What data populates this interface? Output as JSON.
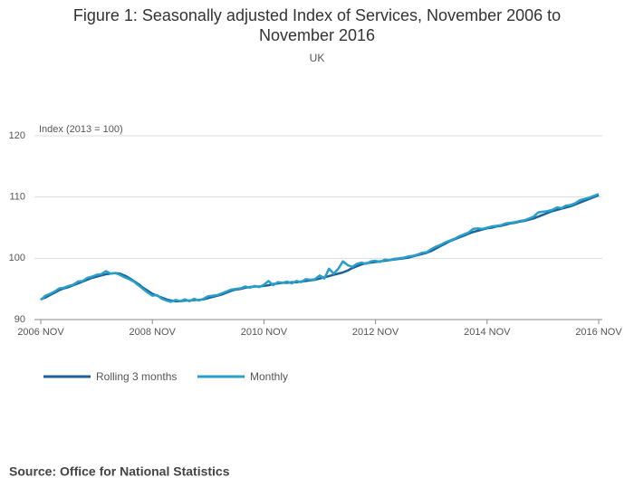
{
  "chart_data": {
    "type": "line",
    "title": "Figure 1: Seasonally adjusted Index of Services, November 2006 to November 2016",
    "subtitle": "UK",
    "y_label": "Index (2013 = 100)",
    "source": "Source: Office for National Statistics",
    "x": [
      "2006-11",
      "2006-12",
      "2007-01",
      "2007-02",
      "2007-03",
      "2007-04",
      "2007-05",
      "2007-06",
      "2007-07",
      "2007-08",
      "2007-09",
      "2007-10",
      "2007-11",
      "2007-12",
      "2008-01",
      "2008-02",
      "2008-03",
      "2008-04",
      "2008-05",
      "2008-06",
      "2008-07",
      "2008-08",
      "2008-09",
      "2008-10",
      "2008-11",
      "2008-12",
      "2009-01",
      "2009-02",
      "2009-03",
      "2009-04",
      "2009-05",
      "2009-06",
      "2009-07",
      "2009-08",
      "2009-09",
      "2009-10",
      "2009-11",
      "2009-12",
      "2010-01",
      "2010-02",
      "2010-03",
      "2010-04",
      "2010-05",
      "2010-06",
      "2010-07",
      "2010-08",
      "2010-09",
      "2010-10",
      "2010-11",
      "2010-12",
      "2011-01",
      "2011-02",
      "2011-03",
      "2011-04",
      "2011-05",
      "2011-06",
      "2011-07",
      "2011-08",
      "2011-09",
      "2011-10",
      "2011-11",
      "2011-12",
      "2012-01",
      "2012-02",
      "2012-03",
      "2012-04",
      "2012-05",
      "2012-06",
      "2012-07",
      "2012-08",
      "2012-09",
      "2012-10",
      "2012-11",
      "2012-12",
      "2013-01",
      "2013-02",
      "2013-03",
      "2013-04",
      "2013-05",
      "2013-06",
      "2013-07",
      "2013-08",
      "2013-09",
      "2013-10",
      "2013-11",
      "2013-12",
      "2014-01",
      "2014-02",
      "2014-03",
      "2014-04",
      "2014-05",
      "2014-06",
      "2014-07",
      "2014-08",
      "2014-09",
      "2014-10",
      "2014-11",
      "2014-12",
      "2015-01",
      "2015-02",
      "2015-03",
      "2015-04",
      "2015-05",
      "2015-06",
      "2015-07",
      "2015-08",
      "2015-09",
      "2015-10",
      "2015-11",
      "2015-12",
      "2016-01",
      "2016-02",
      "2016-03",
      "2016-04",
      "2016-05",
      "2016-06",
      "2016-07",
      "2016-08",
      "2016-09",
      "2016-10",
      "2016-11"
    ],
    "series": [
      {
        "name": "Rolling 3 months",
        "color": "#206095",
        "values": [
          93.3,
          93.6,
          94.0,
          94.4,
          94.8,
          95.1,
          95.3,
          95.6,
          95.9,
          96.2,
          96.5,
          96.8,
          97.0,
          97.2,
          97.4,
          97.5,
          97.6,
          97.5,
          97.2,
          96.8,
          96.3,
          95.8,
          95.2,
          94.7,
          94.2,
          93.9,
          93.6,
          93.3,
          93.1,
          93.0,
          93.0,
          93.1,
          93.1,
          93.2,
          93.2,
          93.3,
          93.5,
          93.7,
          93.9,
          94.1,
          94.4,
          94.7,
          94.9,
          95.0,
          95.2,
          95.3,
          95.4,
          95.4,
          95.5,
          95.6,
          95.8,
          95.9,
          96.0,
          96.0,
          96.1,
          96.1,
          96.2,
          96.3,
          96.4,
          96.5,
          96.7,
          96.9,
          97.1,
          97.3,
          97.5,
          97.7,
          98.0,
          98.4,
          98.7,
          99.0,
          99.2,
          99.3,
          99.4,
          99.5,
          99.6,
          99.7,
          99.8,
          99.9,
          100.0,
          100.1,
          100.3,
          100.5,
          100.7,
          100.9,
          101.2,
          101.6,
          102.0,
          102.4,
          102.8,
          103.1,
          103.4,
          103.7,
          104.0,
          104.3,
          104.5,
          104.7,
          104.9,
          105.0,
          105.2,
          105.3,
          105.5,
          105.7,
          105.8,
          106.0,
          106.1,
          106.3,
          106.5,
          106.8,
          107.1,
          107.4,
          107.7,
          107.9,
          108.1,
          108.3,
          108.5,
          108.8,
          109.1,
          109.4,
          109.7,
          110.0,
          110.3
        ]
      },
      {
        "name": "Monthly",
        "color": "#27a0cc",
        "values": [
          93.2,
          93.9,
          94.2,
          94.6,
          95.1,
          95.2,
          95.5,
          95.7,
          96.2,
          96.3,
          96.8,
          97.0,
          97.3,
          97.4,
          97.9,
          97.5,
          97.6,
          97.3,
          96.9,
          96.6,
          96.2,
          95.6,
          95.0,
          94.4,
          93.9,
          94.0,
          93.4,
          93.1,
          92.9,
          93.2,
          93.0,
          93.3,
          93.0,
          93.4,
          93.1,
          93.4,
          93.8,
          93.9,
          94.0,
          94.3,
          94.6,
          94.9,
          95.0,
          95.1,
          95.4,
          95.2,
          95.5,
          95.3,
          95.7,
          96.3,
          95.6,
          96.1,
          96.0,
          96.2,
          95.9,
          96.3,
          96.1,
          96.6,
          96.5,
          96.6,
          97.2,
          96.7,
          98.3,
          97.5,
          98.3,
          99.5,
          98.9,
          98.6,
          99.1,
          99.3,
          99.1,
          99.5,
          99.6,
          99.4,
          99.8,
          99.7,
          99.9,
          100.0,
          100.1,
          100.3,
          100.4,
          100.6,
          100.9,
          101.0,
          101.5,
          101.9,
          102.2,
          102.6,
          102.9,
          103.2,
          103.6,
          103.9,
          104.2,
          104.8,
          104.9,
          104.8,
          105.0,
          105.2,
          105.3,
          105.4,
          105.7,
          105.8,
          105.9,
          106.1,
          106.2,
          106.5,
          106.8,
          107.5,
          107.6,
          107.7,
          107.9,
          108.3,
          108.2,
          108.6,
          108.7,
          109.0,
          109.5,
          109.7,
          109.9,
          110.2,
          110.5
        ]
      }
    ],
    "xlim": [
      "2006-11",
      "2016-11"
    ],
    "xticks": [
      {
        "value": "2006-11",
        "label": "2006 NOV"
      },
      {
        "value": "2008-11",
        "label": "2008 NOV"
      },
      {
        "value": "2010-11",
        "label": "2010 NOV"
      },
      {
        "value": "2012-11",
        "label": "2012 NOV"
      },
      {
        "value": "2014-11",
        "label": "2014 NOV"
      },
      {
        "value": "2016-11",
        "label": "2016 NOV"
      }
    ],
    "ylim": [
      90,
      120
    ],
    "yticks": [
      90,
      100,
      110,
      120
    ],
    "grid": true
  }
}
